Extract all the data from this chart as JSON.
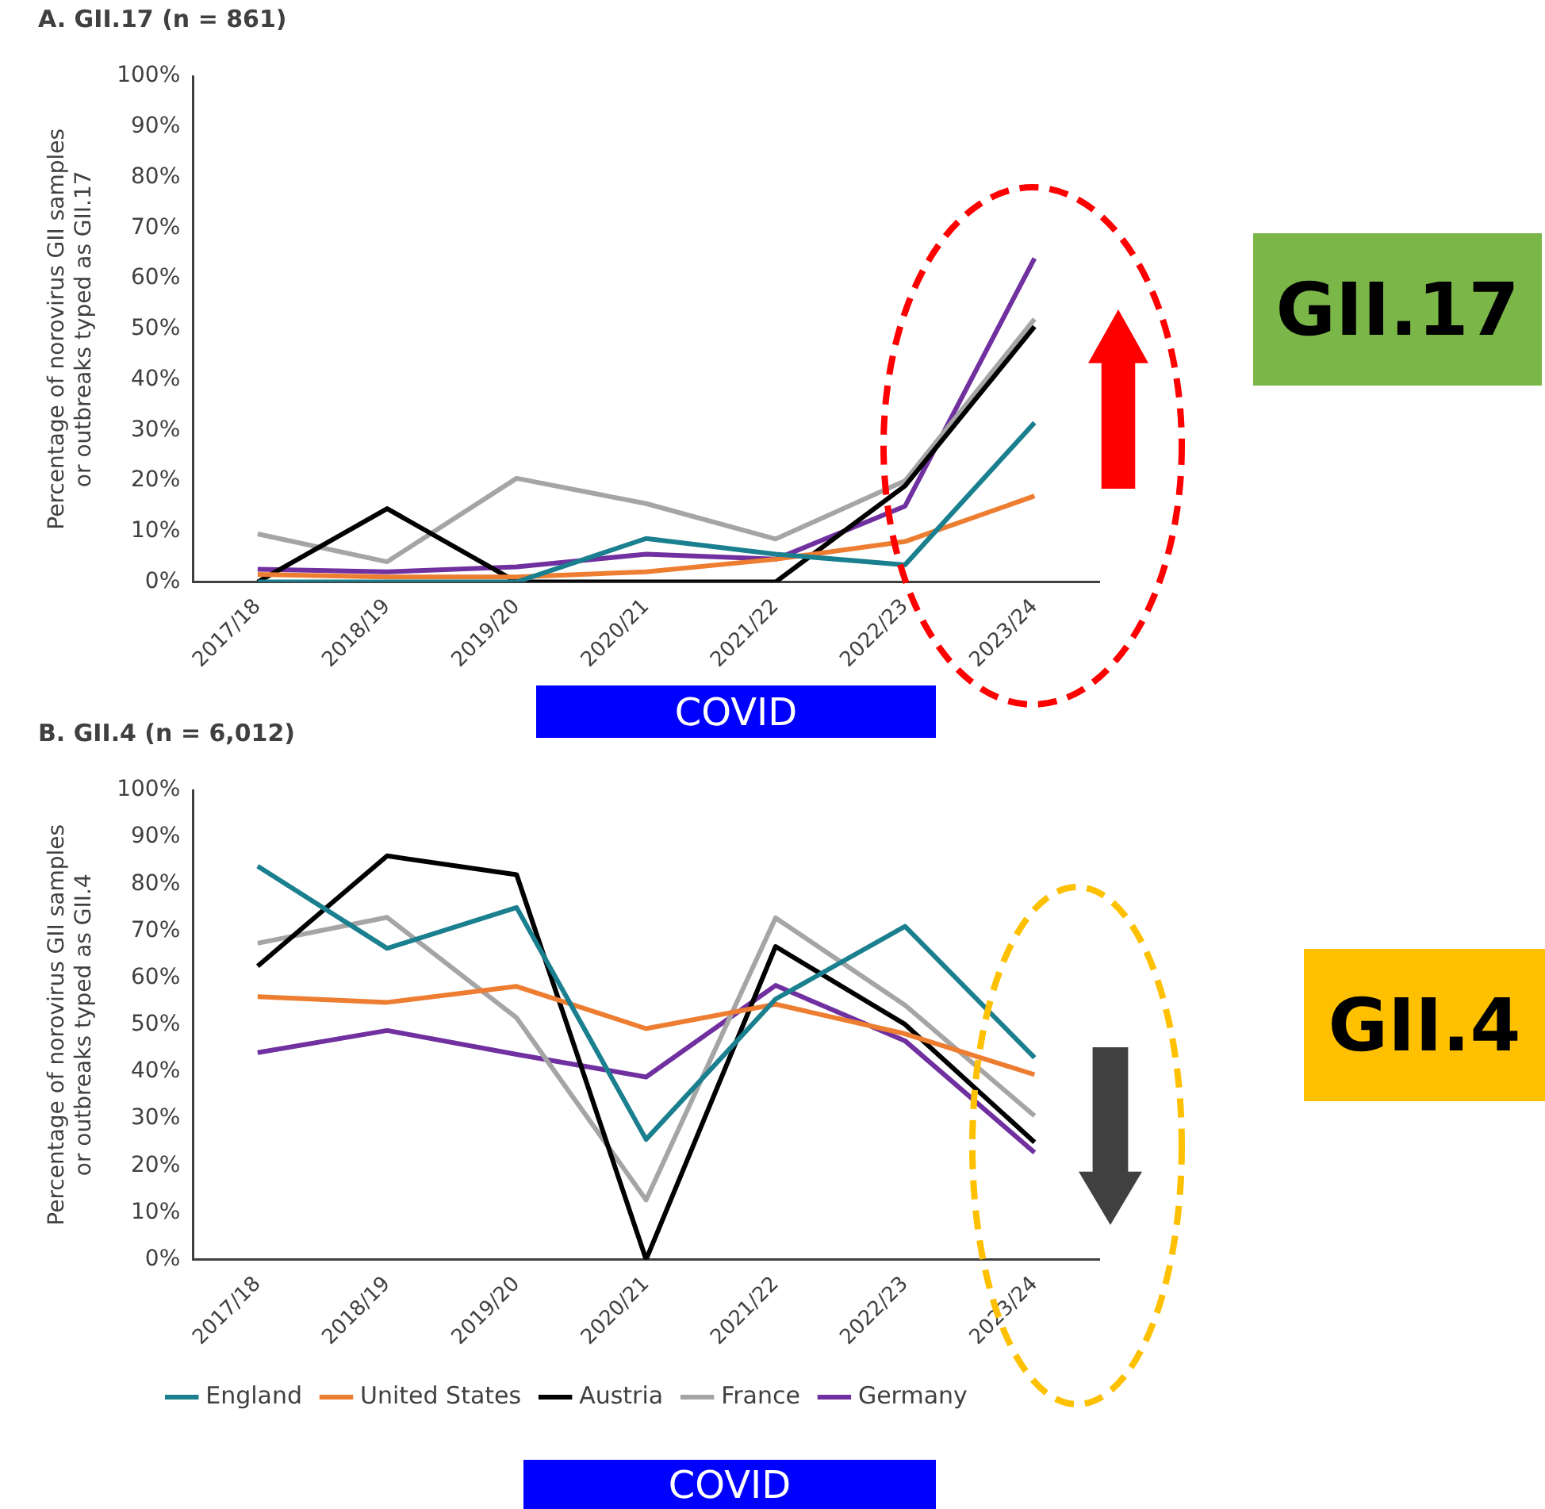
{
  "chart_data": [
    {
      "type": "line",
      "title": "A. GII.17 (n = 861)",
      "ylabel": "Percentage of norovirus GII samples\nor outbreaks typed as GII.17",
      "categories": [
        "2017/18",
        "2018/19",
        "2019/20",
        "2020/21",
        "2021/22",
        "2022/23",
        "2023/24"
      ],
      "series": [
        {
          "color": "#1a7f8e",
          "values": [
            0,
            0,
            0,
            8.6,
            5.5,
            3.4,
            31.5
          ]
        },
        {
          "color": "#ed7d31",
          "values": [
            1.5,
            1,
            1,
            2,
            4.5,
            8,
            17
          ]
        },
        {
          "color": "#000000",
          "values": [
            0,
            14.5,
            0,
            0,
            0,
            19,
            50.5
          ]
        },
        {
          "color": "#a5a5a5",
          "values": [
            9.5,
            4,
            20.5,
            15.5,
            8.5,
            20,
            52
          ]
        },
        {
          "color": "#7030a0",
          "values": [
            2.5,
            2,
            3,
            5.5,
            4.5,
            15,
            64
          ]
        }
      ],
      "ylim": [
        0,
        100
      ],
      "yticks": [
        {
          "value": 0,
          "label": "0%"
        },
        {
          "value": 10,
          "label": "10%"
        },
        {
          "value": 20,
          "label": "20%"
        },
        {
          "value": 30,
          "label": "30%"
        },
        {
          "value": 40,
          "label": "40%"
        },
        {
          "value": 50,
          "label": "50%"
        },
        {
          "value": 60,
          "label": "60%"
        },
        {
          "value": 70,
          "label": "70%"
        },
        {
          "value": 80,
          "label": "80%"
        },
        {
          "value": 90,
          "label": "90%"
        },
        {
          "value": 100,
          "label": "100%"
        }
      ],
      "grid": false,
      "legend": false,
      "marker": "none",
      "line_style": "solid",
      "annotations": [
        "GII.17",
        "COVID"
      ]
    },
    {
      "type": "line",
      "title": "B. GII.4 (n = 6,012)",
      "ylabel": "Percentage of norovirus GII samples\nor outbreaks typed as GII.4",
      "categories": [
        "2017/18",
        "2018/19",
        "2019/20",
        "2020/21",
        "2021/22",
        "2022/23",
        "2023/24"
      ],
      "series": [
        {
          "name": "England",
          "color": "#1a7f8e",
          "values": [
            83.8,
            66.3,
            75,
            25.6,
            55.5,
            71,
            43
          ]
        },
        {
          "name": "United States",
          "color": "#ed7d31",
          "values": [
            56,
            54.8,
            58.2,
            49.2,
            54.4,
            48.1,
            39.4
          ]
        },
        {
          "name": "Austria",
          "color": "#000000",
          "values": [
            62.5,
            86,
            82,
            0,
            66.7,
            50.1,
            25
          ]
        },
        {
          "name": "France",
          "color": "#a5a5a5",
          "values": [
            67.4,
            72.9,
            51.5,
            12.7,
            72.8,
            54.2,
            30.6
          ]
        },
        {
          "name": "Germany",
          "color": "#7030a0",
          "values": [
            44.1,
            48.8,
            43.7,
            38.9,
            58.4,
            46.6,
            22.8
          ]
        }
      ],
      "ylim": [
        0,
        100
      ],
      "yticks": [
        {
          "value": 0,
          "label": "0%"
        },
        {
          "value": 10,
          "label": "10%"
        },
        {
          "value": 20,
          "label": "20%"
        },
        {
          "value": 30,
          "label": "30%"
        },
        {
          "value": 40,
          "label": "40%"
        },
        {
          "value": 50,
          "label": "50%"
        },
        {
          "value": 60,
          "label": "60%"
        },
        {
          "value": 70,
          "label": "70%"
        },
        {
          "value": 80,
          "label": "80%"
        },
        {
          "value": 90,
          "label": "90%"
        },
        {
          "value": 100,
          "label": "100%"
        }
      ],
      "grid": false,
      "legend": "bottom",
      "marker": "none",
      "line_style": "solid",
      "annotations": [
        "GII.4",
        "COVID"
      ]
    }
  ]
}
